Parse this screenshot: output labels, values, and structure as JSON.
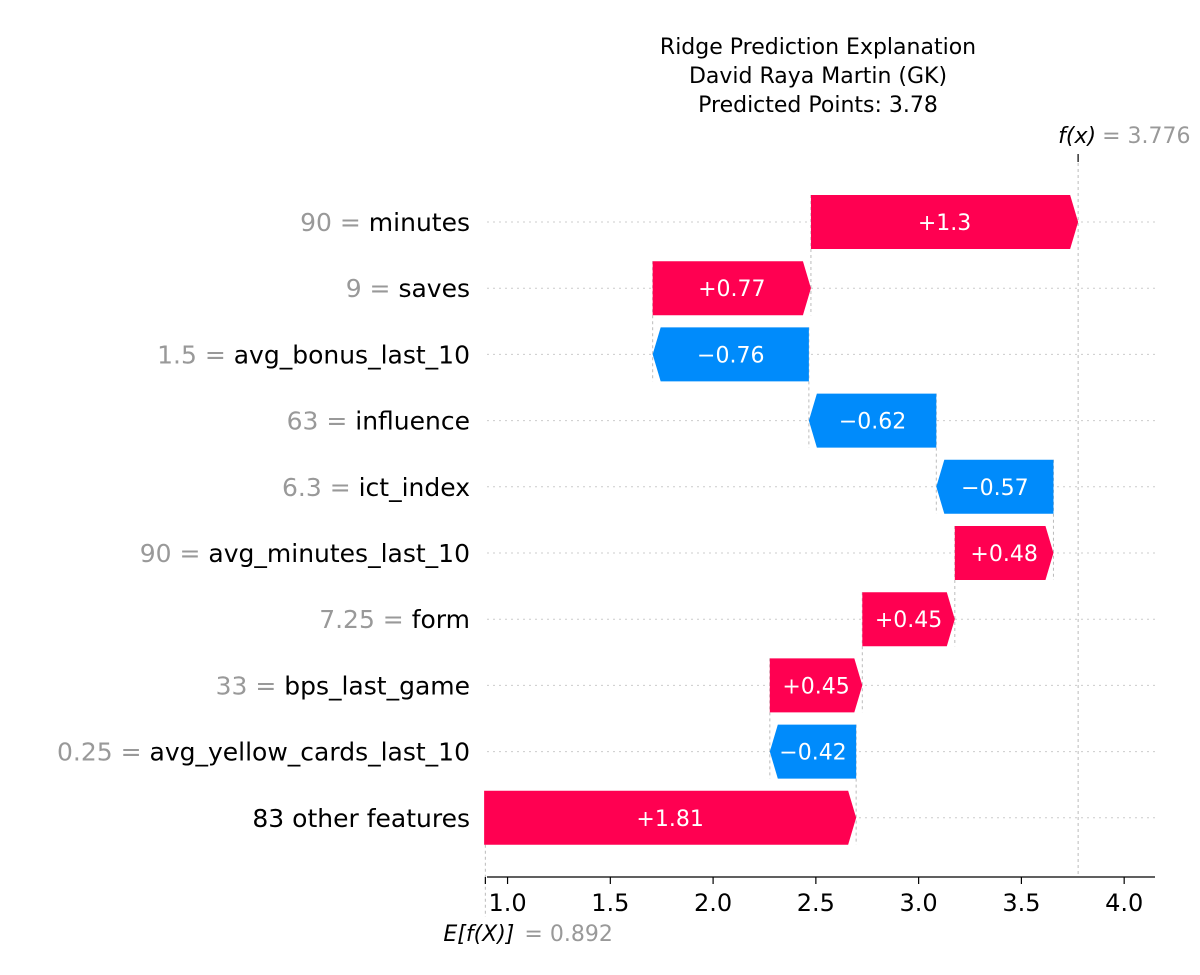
{
  "chart_data": {
    "type": "bar",
    "subtype": "waterfall",
    "title": [
      "Ridge Prediction Explanation",
      "David Raya Martin (GK)",
      "Predicted Points: 3.78"
    ],
    "xlim": [
      0.9,
      4.15
    ],
    "x_ticks": [
      1.0,
      1.5,
      2.0,
      2.5,
      3.0,
      3.5,
      4.0
    ],
    "x_tick_labels": [
      "1.0",
      "1.5",
      "2.0",
      "2.5",
      "3.0",
      "3.5",
      "4.0"
    ],
    "base_value": 0.892,
    "base_label": "E[f(X)]",
    "base_value_label": "= 0.892",
    "output_value": 3.776,
    "output_label": "f(x)",
    "output_value_label": "= 3.776",
    "features": [
      {
        "value": "90",
        "name": "minutes",
        "contribution": 1.3,
        "label": "+1.3",
        "start": 2.476,
        "end": 3.776
      },
      {
        "value": "9",
        "name": "saves",
        "contribution": 0.77,
        "label": "+0.77",
        "start": 1.706,
        "end": 2.476
      },
      {
        "value": "1.5",
        "name": "avg_bonus_last_10",
        "contribution": -0.76,
        "label": "−0.76",
        "start": 2.466,
        "end": 1.706
      },
      {
        "value": "63",
        "name": "influence",
        "contribution": -0.62,
        "label": "−0.62",
        "start": 3.086,
        "end": 2.466
      },
      {
        "value": "6.3",
        "name": "ict_index",
        "contribution": -0.57,
        "label": "−0.57",
        "start": 3.656,
        "end": 3.086
      },
      {
        "value": "90",
        "name": "avg_minutes_last_10",
        "contribution": 0.48,
        "label": "+0.48",
        "start": 3.176,
        "end": 3.656
      },
      {
        "value": "7.25",
        "name": "form",
        "contribution": 0.45,
        "label": "+0.45",
        "start": 2.726,
        "end": 3.176
      },
      {
        "value": "33",
        "name": "bps_last_game",
        "contribution": 0.45,
        "label": "+0.45",
        "start": 2.276,
        "end": 2.726
      },
      {
        "value": "0.25",
        "name": "avg_yellow_cards_last_10",
        "contribution": -0.42,
        "label": "−0.42",
        "start": 2.696,
        "end": 2.276
      },
      {
        "value": "",
        "name": "83 other features",
        "contribution": 1.81,
        "label": "+1.81",
        "start": 0.886,
        "end": 2.696
      }
    ],
    "colors": {
      "positive": "#ff0051",
      "negative": "#008bfb",
      "connector": "#bbbbbb",
      "value_text": "#999999"
    },
    "grid": true
  }
}
